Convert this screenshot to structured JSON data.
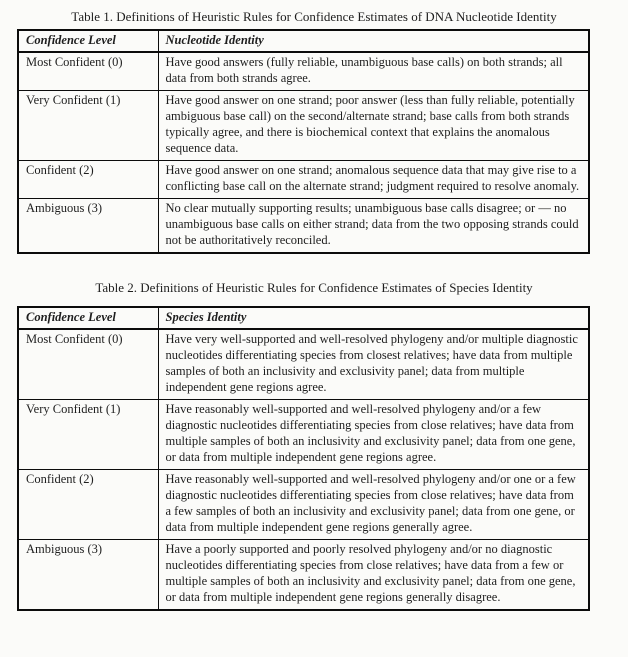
{
  "tables": [
    {
      "title": "Table 1. Definitions of Heuristic Rules for Confidence Estimates of DNA Nucleotide Identity",
      "col1_header": "Confidence Level",
      "col2_header": "Nucleotide Identity",
      "rows": [
        {
          "level": "Most Confident (0)",
          "definition": "Have good answers (fully reliable, unambiguous base calls) on both strands; all data from both strands agree."
        },
        {
          "level": "Very Confident (1)",
          "definition": "Have good answer on one strand; poor answer (less than fully reliable, potentially ambiguous base call) on the second/alternate strand; base calls from both strands typically agree, and there is biochemical context that explains the anomalous sequence data."
        },
        {
          "level": "Confident (2)",
          "definition": "Have good answer on one strand; anomalous sequence data that may give rise to a conflicting base call on the alternate strand; judgment required to resolve anomaly."
        },
        {
          "level": "Ambiguous (3)",
          "definition": "No clear mutually supporting results; unambiguous base calls disagree; or — no unambiguous base calls on either strand; data from the two opposing strands could not be authoritatively reconciled."
        }
      ]
    },
    {
      "title": "Table 2. Definitions of Heuristic Rules for Confidence Estimates of Species Identity",
      "col1_header": "Confidence Level",
      "col2_header": "Species Identity",
      "rows": [
        {
          "level": "Most Confident (0)",
          "definition": "Have very well-supported and well-resolved phylogeny and/or multiple diagnostic nucleotides differentiating species from closest relatives; have data from multiple samples of both an inclusivity and exclusivity panel; data from multiple independent gene regions agree."
        },
        {
          "level": "Very Confident (1)",
          "definition": "Have reasonably well-supported and well-resolved phylogeny and/or a few diagnostic nucleotides differentiating species from close relatives; have data from multiple samples of both an inclusivity and exclusivity panel; data from one gene, or data from multiple independent gene regions agree."
        },
        {
          "level": "Confident (2)",
          "definition": "Have reasonably well-supported and well-resolved phylogeny and/or one or a few diagnostic nucleotides differentiating species from close relatives; have data from a few samples of both an inclusivity and exclusivity panel; data from one gene, or data from multiple independent gene regions generally agree."
        },
        {
          "level": "Ambiguous (3)",
          "definition": "Have a poorly supported and poorly resolved phylogeny and/or no diagnostic nucleotides differentiating species from close relatives; have data from a few or multiple samples of both an inclusivity and exclusivity panel; data from one gene, or data from multiple independent gene regions generally disagree."
        }
      ]
    }
  ]
}
